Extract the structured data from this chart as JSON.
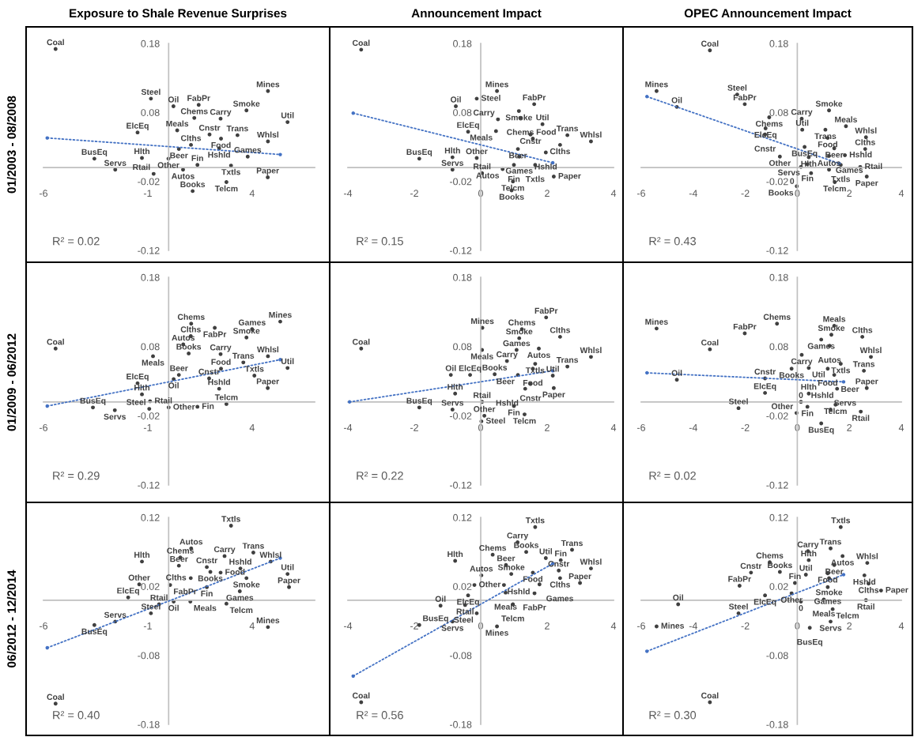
{
  "chart_data": [
    {
      "type": "scatter",
      "title": "Exposure to Shale Revenue Surprises",
      "ylabel": "01/2003 - 08/2008",
      "xlim": [
        -6,
        7
      ],
      "ylim": [
        -0.12,
        0.18
      ],
      "xticks": [
        -6,
        -1,
        4
      ],
      "yticks": [
        -0.12,
        -0.02,
        0.08,
        0.18
      ],
      "marker": "circle",
      "annotations": [
        "R² = 0.02"
      ],
      "series": [
        {
          "type": "scatter",
          "color": "#404040",
          "value_labels": [
            "Coal",
            "Steel",
            "Oil",
            "FabPr",
            "Mines",
            "Smoke",
            "Chems",
            "Carry",
            "Util",
            "ElcEq",
            "Meals",
            "Cnstr",
            "Trans",
            "Food",
            "Whlsl",
            "Clths",
            "Beer",
            "Hshld",
            "BusEq",
            "Hlth",
            "Other",
            "Games",
            "Fin",
            "Txtls",
            "Servs",
            "Rtail",
            "Autos",
            "Paper",
            "Telcm",
            "Books"
          ],
          "x": [
            -5.42,
            -0.85,
            0.23,
            1.44,
            4.76,
            3.73,
            1.23,
            2.49,
            5.7,
            -1.49,
            0.41,
            1.96,
            3.3,
            2.51,
            4.76,
            1.07,
            0.49,
            2.42,
            -3.56,
            -1.28,
            -0.01,
            3.79,
            1.38,
            2.99,
            -2.56,
            -0.72,
            0.69,
            4.75,
            2.77,
            1.15
          ],
          "values": [
            0.172,
            0.1,
            0.089,
            0.091,
            0.111,
            0.083,
            0.072,
            0.071,
            0.066,
            0.051,
            0.054,
            0.048,
            0.047,
            0.042,
            0.038,
            0.033,
            0.027,
            0.028,
            0.013,
            0.014,
            0.013,
            0.016,
            0.004,
            0.003,
            -0.003,
            -0.009,
            -0.003,
            -0.014,
            -0.021,
            -0.034
          ]
        },
        {
          "type": "line",
          "color": "#4472c4",
          "line_style": "dotted",
          "x": [
            -5.82,
            5.35
          ],
          "values": [
            0.043,
            0.019
          ]
        }
      ]
    },
    {
      "type": "scatter",
      "title": "Announcement Impact",
      "xlim": [
        -4,
        4
      ],
      "ylim": [
        -0.12,
        0.18
      ],
      "xticks": [
        -4,
        -2,
        0,
        2,
        4
      ],
      "yticks": [
        -0.12,
        -0.02,
        0.08,
        0.18
      ],
      "marker": "circle",
      "annotations": [
        "R² = 0.15"
      ],
      "series": [
        {
          "type": "scatter",
          "color": "#404040",
          "value_labels": [
            "Coal",
            "BusEq",
            "Hlth",
            "Servs",
            "Oil",
            "Mines",
            "Steel",
            "FabPr",
            "Smoke",
            "Chems",
            "Carry",
            "Util",
            "ElcEq",
            "Meals",
            "Cnstr",
            "Food",
            "Trans",
            "Clths",
            "Whlsl",
            "Beer",
            "Hshld",
            "Other",
            "Games",
            "Fin",
            "Txtls",
            "Rtail",
            "Autos",
            "Paper",
            "Telcm",
            "Books"
          ],
          "x": [
            -3.6,
            -1.85,
            -0.85,
            -0.85,
            -0.75,
            0.49,
            -0.12,
            1.61,
            1.15,
            1.19,
            0.52,
            1.86,
            -0.38,
            0.46,
            1.5,
            1.57,
            2.61,
            2.39,
            3.32,
            1.12,
            1.96,
            -0.12,
            1.16,
            1.0,
            1.64,
            0.04,
            0.66,
            2.2,
            0.97,
            0.93
          ],
          "values": [
            0.171,
            0.013,
            0.015,
            -0.003,
            0.089,
            0.111,
            0.1,
            0.092,
            0.082,
            0.072,
            0.07,
            0.063,
            0.052,
            0.053,
            0.048,
            0.042,
            0.047,
            0.033,
            0.038,
            0.027,
            0.022,
            0.014,
            0.016,
            0.004,
            0.004,
            -0.008,
            -0.002,
            -0.013,
            -0.02,
            -0.033
          ]
        },
        {
          "type": "line",
          "color": "#4472c4",
          "line_style": "dotted",
          "x": [
            -3.84,
            2.17
          ],
          "values": [
            0.079,
            0.007
          ]
        }
      ]
    },
    {
      "type": "scatter",
      "title": "OPEC Announcement Impact",
      "xlim": [
        -6,
        4
      ],
      "ylim": [
        -0.12,
        0.18
      ],
      "xticks": [
        -6,
        -4,
        -2,
        0,
        2,
        4
      ],
      "yticks": [
        -0.12,
        -0.02,
        0.08,
        0.18
      ],
      "marker": "circle",
      "annotations": [
        "R² = 0.43"
      ],
      "series": [
        {
          "type": "scatter",
          "color": "#404040",
          "value_labels": [
            "Coal",
            "Mines",
            "Steel",
            "FabPr",
            "Oil",
            "Smoke",
            "Chems",
            "Carry",
            "Meals",
            "ElcEq",
            "Util",
            "Trans",
            "Cnstr",
            "Food",
            "Whlsl",
            "BusEq",
            "Beer",
            "Clths",
            "Other",
            "Hlth",
            "Games",
            "Hshld",
            "Fin",
            "Txtls",
            "Rtail",
            "Autos",
            "Servs",
            "Paper",
            "Telcm",
            "Books",
            "0"
          ],
          "x": [
            -3.36,
            -5.41,
            -2.31,
            -2.02,
            -4.63,
            1.22,
            -1.08,
            0.17,
            1.87,
            -1.22,
            0.19,
            1.08,
            -1.24,
            1.17,
            2.64,
            0.28,
            1.42,
            2.61,
            -0.67,
            0.44,
            1.22,
            1.83,
            0.39,
            1.67,
            2.42,
            1.22,
            0.53,
            2.67,
            1.44,
            -0.02,
            0.14
          ],
          "values": [
            0.17,
            0.111,
            0.106,
            0.092,
            0.088,
            0.083,
            0.073,
            0.071,
            0.06,
            0.057,
            0.055,
            0.055,
            0.048,
            0.043,
            0.044,
            0.03,
            0.028,
            0.027,
            0.016,
            0.015,
            0.017,
            0.018,
            0.005,
            0.004,
            0.001,
            -0.003,
            -0.008,
            -0.013,
            -0.021,
            -0.027,
            0.001
          ]
        },
        {
          "type": "line",
          "color": "#4472c4",
          "line_style": "dotted",
          "x": [
            -5.78,
            1.61
          ],
          "values": [
            0.103,
            0.006
          ]
        }
      ]
    },
    {
      "type": "scatter",
      "ylabel": "01/2009 - 06/2012",
      "xlim": [
        -6,
        7
      ],
      "ylim": [
        -0.12,
        0.18
      ],
      "xticks": [
        -6,
        -1,
        4
      ],
      "yticks": [
        -0.12,
        -0.02,
        0.08,
        0.18
      ],
      "marker": "circle",
      "annotations": [
        "R² = 0.29"
      ],
      "series": [
        {
          "type": "scatter",
          "color": "#404040",
          "value_labels": [
            "Chems",
            "FabPr",
            "Mines",
            "Games",
            "Clths",
            "Smoke",
            "Autos",
            "Coal",
            "Meals",
            "Books",
            "Carry",
            "Whlsl",
            "Trans",
            "Util",
            "Food",
            "Beer",
            "Oil",
            "Cnstr",
            "Txtls",
            "ElcEq",
            "Hshld",
            "Paper",
            "Hlth",
            "Rtail",
            "BusEq",
            "Servs",
            "Steel",
            "Other",
            "Fin",
            "Telcm"
          ],
          "x": [
            1.08,
            2.21,
            5.35,
            4.0,
            1.06,
            3.73,
            0.7,
            -5.42,
            -0.75,
            0.96,
            2.49,
            4.76,
            3.58,
            5.7,
            2.51,
            0.49,
            0.24,
            1.94,
            4.11,
            -1.49,
            2.42,
            4.75,
            -1.28,
            -0.89,
            -3.63,
            -2.58,
            -0.93,
            0.0,
            1.38,
            2.77
          ],
          "values": [
            0.113,
            0.107,
            0.116,
            0.105,
            0.095,
            0.093,
            0.083,
            0.077,
            0.066,
            0.07,
            0.069,
            0.066,
            0.057,
            0.049,
            0.048,
            0.039,
            0.033,
            0.034,
            0.038,
            0.027,
            0.019,
            0.02,
            0.011,
            0.001,
            -0.008,
            -0.012,
            -0.01,
            -0.008,
            -0.007,
            -0.003
          ]
        },
        {
          "type": "line",
          "color": "#4472c4",
          "line_style": "dotted",
          "x": [
            -5.82,
            5.35
          ],
          "values": [
            -0.006,
            0.061
          ]
        }
      ]
    },
    {
      "type": "scatter",
      "xlim": [
        -4,
        4
      ],
      "ylim": [
        -0.12,
        0.18
      ],
      "xticks": [
        -4,
        -2,
        0,
        2,
        4
      ],
      "yticks": [
        -0.12,
        -0.02,
        0.08,
        0.18
      ],
      "marker": "circle",
      "annotations": [
        "R² = 0.22"
      ],
      "series": [
        {
          "type": "scatter",
          "color": "#404040",
          "value_labels": [
            "FabPr",
            "Mines",
            "Chems",
            "Smoke",
            "Clths",
            "Meals",
            "Games",
            "Autos",
            "Whlsl",
            "Carry",
            "Txtls",
            "Food",
            "Trans",
            "Oil",
            "ElcEq",
            "Books",
            "Beer",
            "Util",
            "Cnstr",
            "Hshld",
            "Paper",
            "Hlth",
            "Rtail",
            "Fin",
            "Servs",
            "Other",
            "Telcm",
            "Steel",
            "BusEq",
            "Coal"
          ],
          "x": [
            1.97,
            0.05,
            1.24,
            1.16,
            2.39,
            0.04,
            1.08,
            1.75,
            3.32,
            0.79,
            1.64,
            1.57,
            2.61,
            -0.9,
            -0.32,
            0.42,
            1.12,
            2.17,
            1.5,
            1.34,
            2.2,
            -0.77,
            0.04,
            1.0,
            -0.85,
            0.11,
            1.32,
            0.02,
            -1.85,
            -3.6
          ],
          "values": [
            0.122,
            0.107,
            0.105,
            0.092,
            0.094,
            0.075,
            0.075,
            0.077,
            0.065,
            0.059,
            0.055,
            0.048,
            0.051,
            0.039,
            0.039,
            0.04,
            0.039,
            0.038,
            0.026,
            0.019,
            0.02,
            0.012,
            0.0,
            -0.006,
            -0.011,
            -0.02,
            -0.018,
            -0.028,
            -0.008,
            0.077
          ]
        },
        {
          "type": "line",
          "color": "#4472c4",
          "line_style": "dotted",
          "x": [
            -3.95,
            2.17
          ],
          "values": [
            0.0,
            0.045
          ]
        }
      ]
    },
    {
      "type": "scatter",
      "xlim": [
        -6,
        4
      ],
      "ylim": [
        -0.12,
        0.18
      ],
      "xticks": [
        -6,
        -4,
        -2,
        0,
        2,
        4
      ],
      "yticks": [
        -0.12,
        -0.02,
        0.08,
        0.18
      ],
      "marker": "circle",
      "annotations": [
        "R² = 0.02"
      ],
      "series": [
        {
          "type": "scatter",
          "color": "#404040",
          "value_labels": [
            "Chems",
            "Meals",
            "Mines",
            "Smoke",
            "Clths",
            "FabPr",
            "Games",
            "Autos",
            "Coal",
            "Carry",
            "Whlsl",
            "Txtls",
            "Books",
            "Util",
            "Food",
            "Trans",
            "Beer",
            "Oil",
            "Cnstr",
            "Hshld",
            "Paper",
            "ElcEq",
            "Hlth",
            "0",
            "Telcm",
            "Fin",
            "Steel",
            "Servs",
            "Rtail",
            "Other",
            "BusEq"
          ],
          "x": [
            -0.78,
            1.42,
            -5.41,
            1.31,
            2.5,
            -2.02,
            0.92,
            1.24,
            -3.36,
            0.17,
            2.83,
            1.67,
            -0.22,
            0.44,
            1.17,
            2.56,
            1.42,
            -4.63,
            -1.24,
            1.53,
            2.67,
            -1.24,
            0.44,
            0.14,
            1.47,
            0.39,
            -2.26,
            1.28,
            2.44,
            -0.03,
            0.92
          ],
          "values": [
            0.113,
            0.11,
            0.106,
            0.097,
            0.094,
            0.099,
            0.09,
            0.081,
            0.076,
            0.068,
            0.065,
            0.055,
            0.048,
            0.049,
            0.048,
            0.045,
            0.039,
            0.032,
            0.034,
            0.019,
            0.02,
            0.013,
            0.012,
            0.0,
            -0.004,
            -0.007,
            -0.009,
            -0.011,
            -0.014,
            -0.016,
            -0.031
          ]
        },
        {
          "type": "line",
          "color": "#4472c4",
          "line_style": "dotted",
          "x": [
            -5.78,
            1.78
          ],
          "values": [
            0.042,
            0.029
          ]
        }
      ]
    },
    {
      "type": "scatter",
      "ylabel": "06/2012 - 12/2014",
      "xlim": [
        -6,
        7
      ],
      "ylim": [
        -0.18,
        0.12
      ],
      "xticks": [
        -6,
        -1,
        4
      ],
      "yticks": [
        -0.18,
        -0.08,
        0.02,
        0.12
      ],
      "marker": "circle",
      "annotations": [
        "R² = 0.40"
      ],
      "series": [
        {
          "type": "scatter",
          "color": "#404040",
          "value_labels": [
            "Txtls",
            "Autos",
            "Carry",
            "Trans",
            "Hlth",
            "Chems",
            "Whlsl",
            "Beer",
            "Cnstr",
            "Hshld",
            "Books",
            "Food",
            "Util",
            "Smoke",
            "Clths",
            "Other",
            "FabPr",
            "Fin",
            "Paper",
            "Games",
            "ElcEq",
            "Oil",
            "Meals",
            "Rtail",
            "Telcm",
            "Steel",
            "Servs",
            "BusEq",
            "Mines",
            "Coal"
          ],
          "x": [
            2.99,
            1.08,
            2.68,
            4.06,
            -1.28,
            0.56,
            4.89,
            0.49,
            1.83,
            3.44,
            2.0,
            2.49,
            5.7,
            3.73,
            1.06,
            -1.41,
            0.07,
            1.83,
            5.77,
            3.41,
            -1.94,
            0.24,
            1.04,
            -0.46,
            2.77,
            -0.85,
            -2.56,
            -3.56,
            4.76,
            -5.42
          ],
          "values": [
            0.108,
            0.075,
            0.064,
            0.069,
            0.056,
            0.062,
            0.056,
            0.05,
            0.048,
            0.046,
            0.041,
            0.04,
            0.038,
            0.032,
            0.032,
            0.023,
            0.022,
            0.019,
            0.019,
            0.013,
            0.004,
            -0.002,
            -0.002,
            -0.006,
            -0.005,
            -0.019,
            -0.031,
            -0.036,
            -0.039,
            -0.15
          ]
        },
        {
          "type": "line",
          "color": "#4472c4",
          "line_style": "dotted",
          "x": [
            -5.82,
            5.35
          ],
          "values": [
            -0.069,
            0.061
          ]
        }
      ]
    },
    {
      "type": "scatter",
      "xlim": [
        -4,
        4
      ],
      "ylim": [
        -0.18,
        0.12
      ],
      "xticks": [
        -4,
        -2,
        0,
        2,
        4
      ],
      "yticks": [
        -0.18,
        -0.08,
        0.02,
        0.12
      ],
      "marker": "circle",
      "annotations": [
        "R² = 0.56"
      ],
      "series": [
        {
          "type": "scatter",
          "color": "#404040",
          "value_labels": [
            "Txtls",
            "Carry",
            "Books",
            "Chems",
            "Trans",
            "Util",
            "Fin",
            "Beer",
            "Whlsl",
            "Autos",
            "Smoke",
            "Food",
            "Cnstr",
            "Clths",
            "Other",
            "Hshld",
            "Games",
            "Paper",
            "ElcEq",
            "Meals",
            "FabPr",
            "Rtail",
            "Telcm",
            "Steel",
            "Mines",
            "Hlth",
            "Servs",
            "Oil",
            "BusEq",
            "Coal"
          ],
          "x": [
            1.64,
            1.11,
            1.37,
            0.36,
            2.75,
            1.96,
            2.41,
            0.76,
            3.32,
            0.02,
            0.92,
            1.57,
            2.35,
            2.39,
            -0.19,
            0.7,
            1.77,
            2.99,
            -0.38,
            0.75,
            1.62,
            -0.47,
            0.97,
            -0.12,
            0.49,
            -0.77,
            -0.85,
            -1.21,
            -1.85,
            -3.6
          ],
          "values": [
            0.106,
            0.084,
            0.07,
            0.066,
            0.073,
            0.061,
            0.058,
            0.051,
            0.046,
            0.036,
            0.038,
            0.04,
            0.043,
            0.032,
            0.022,
            0.022,
            0.023,
            0.025,
            0.007,
            0.011,
            0.01,
            -0.007,
            -0.006,
            -0.019,
            -0.038,
            0.057,
            -0.031,
            -0.008,
            -0.036,
            -0.148
          ]
        },
        {
          "type": "line",
          "color": "#4472c4",
          "line_style": "dotted",
          "x": [
            -3.84,
            2.17
          ],
          "values": [
            -0.11,
            0.053
          ]
        }
      ]
    },
    {
      "type": "scatter",
      "xlim": [
        -6,
        4
      ],
      "ylim": [
        -0.18,
        0.12
      ],
      "xticks": [
        -6,
        -4,
        -2,
        0,
        2,
        4
      ],
      "yticks": [
        -0.18,
        -0.08,
        0.02,
        0.12
      ],
      "marker": "circle",
      "annotations": [
        "R² = 0.30"
      ],
      "series": [
        {
          "type": "scatter",
          "color": "#404040",
          "value_labels": [
            "Txtls",
            "Carry",
            "Trans",
            "Autos",
            "Hlth",
            "Chems",
            "Whlsl",
            "Beer",
            "Cnstr",
            "Books",
            "Util",
            "Food",
            "Hshld",
            "Smoke",
            "Fin",
            "FabPr",
            "Games",
            "Clths",
            "Paper",
            "ElcEq",
            "Other",
            "0",
            "Meals",
            "Rtail",
            "Oil",
            "Telcm",
            "Steel",
            "Servs",
            "Mines",
            "BusEq",
            "Coal"
          ],
          "x": [
            1.67,
            0.41,
            1.28,
            1.74,
            0.44,
            -1.06,
            2.69,
            1.42,
            -1.78,
            -0.67,
            0.33,
            1.17,
            2.58,
            1.22,
            -0.09,
            -2.22,
            1.17,
            2.74,
            3.22,
            -1.24,
            -0.22,
            0.14,
            1.02,
            2.64,
            -4.58,
            1.36,
            -2.26,
            1.28,
            -5.41,
            0.48,
            -3.36
          ],
          "values": [
            0.106,
            0.071,
            0.075,
            0.064,
            0.058,
            0.055,
            0.054,
            0.051,
            0.04,
            0.041,
            0.037,
            0.039,
            0.036,
            0.032,
            0.025,
            0.021,
            0.019,
            0.024,
            0.014,
            0.007,
            0.01,
            -0.002,
            0.001,
            0.0,
            -0.006,
            -0.013,
            -0.019,
            -0.031,
            -0.038,
            -0.04,
            -0.148
          ]
        },
        {
          "type": "line",
          "color": "#4472c4",
          "line_style": "dotted",
          "x": [
            -5.78,
            1.78
          ],
          "values": [
            -0.074,
            0.037
          ]
        }
      ]
    }
  ]
}
